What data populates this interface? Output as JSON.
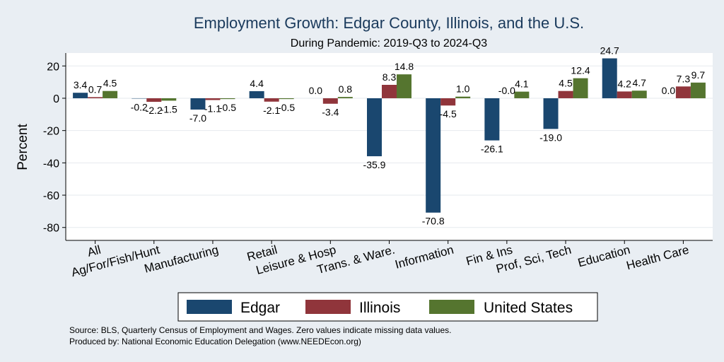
{
  "chart_data": {
    "type": "bar",
    "title": "Employment Growth: Edgar County, Illinois, and the U.S.",
    "subtitle": "During Pandemic: 2019-Q3 to 2024-Q3",
    "ylabel": "Percent",
    "xlabel": "",
    "ylim": [
      -88,
      28
    ],
    "yticks": [
      20,
      0,
      -20,
      -40,
      -60,
      -80
    ],
    "grid": true,
    "legend_position": "bottom",
    "categories": [
      "All",
      "Ag/For/Fish/Hunt",
      "Manufacturing",
      "Retail",
      "Leisure & Hosp",
      "Trans. & Ware.",
      "Information",
      "Fin & Ins",
      "Prof, Sci, Tech",
      "Education",
      "Health Care"
    ],
    "series": [
      {
        "name": "Edgar",
        "color": "#1a476f",
        "values": [
          3.4,
          -0.2,
          -7.0,
          4.4,
          0.0,
          -35.9,
          -70.8,
          -26.1,
          -19.0,
          24.7,
          0.0
        ]
      },
      {
        "name": "Illinois",
        "color": "#90353b",
        "values": [
          0.7,
          -2.2,
          -1.1,
          -2.1,
          -3.4,
          8.3,
          -4.5,
          -0.0,
          4.5,
          4.2,
          7.3
        ]
      },
      {
        "name": "United States",
        "color": "#55752f",
        "values": [
          4.5,
          -1.5,
          -0.5,
          -0.5,
          0.8,
          14.8,
          1.0,
          4.1,
          12.4,
          4.7,
          9.7
        ]
      }
    ],
    "value_labels": [
      [
        "3.4",
        "-0.2",
        "-7.0",
        "4.4",
        "0.0",
        "-35.9",
        "-70.8",
        "-26.1",
        "-19.0",
        "24.7",
        "0.0"
      ],
      [
        "0.7",
        "-2.2",
        "-1.1",
        "-2.1",
        "-3.4",
        "8.3",
        "-4.5",
        "-0.0",
        "4.5",
        "4.2",
        "7.3"
      ],
      [
        "4.5",
        "-1.5",
        "-0.5",
        "-0.5",
        "0.8",
        "14.8",
        "1.0",
        "4.1",
        "12.4",
        "4.7",
        "9.7"
      ]
    ]
  },
  "notes": {
    "source": "Source: BLS, Quarterly Census of Employment and Wages. Zero values indicate missing data values.",
    "produced_by": "Produced by: National Economic Education Delegation (www.NEEDEcon.org)"
  },
  "colors": {
    "background": "#e9eef3",
    "plot_background": "#ffffff",
    "title": "#1a3a5c",
    "grid": "#e6eaee"
  }
}
